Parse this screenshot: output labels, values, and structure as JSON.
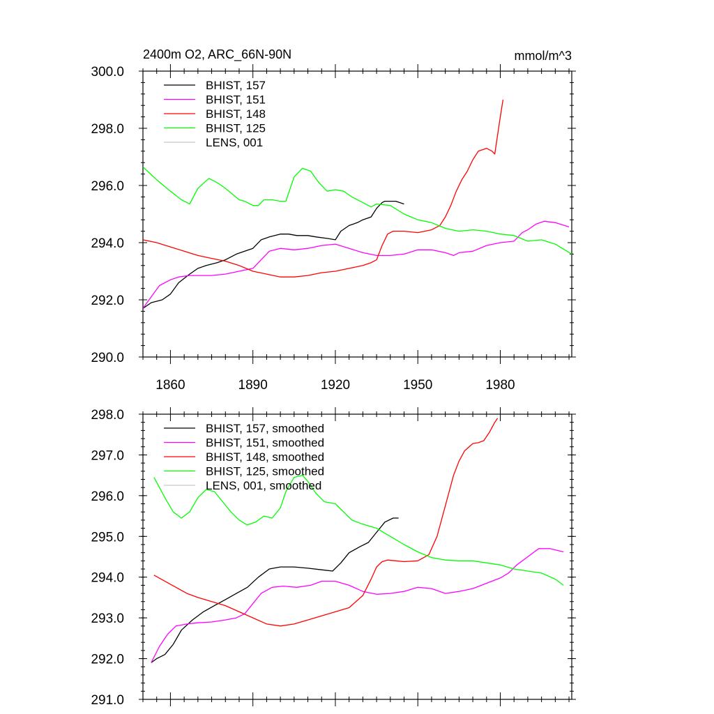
{
  "chart_data": [
    {
      "type": "line",
      "title_left": "2400m O2, ARC_66N-90N",
      "title_right": "mmol/m^3",
      "xlim": [
        1850,
        2006
      ],
      "ylim": [
        290.0,
        300.0
      ],
      "xticks": [
        1860,
        1890,
        1920,
        1950,
        1980
      ],
      "yticks": [
        290.0,
        292.0,
        294.0,
        296.0,
        298.0,
        300.0
      ],
      "legend_position": "top-left",
      "series": [
        {
          "name": "BHIST, 157",
          "color": "#000000",
          "x": [
            1850,
            1853,
            1857,
            1860,
            1863,
            1867,
            1870,
            1873,
            1877,
            1880,
            1884,
            1887,
            1890,
            1893,
            1896,
            1900,
            1903,
            1906,
            1910,
            1913,
            1917,
            1920,
            1922,
            1925,
            1928,
            1930,
            1933,
            1935,
            1937,
            1938,
            1940,
            1942,
            1945
          ],
          "y": [
            291.7,
            291.9,
            292.0,
            292.2,
            292.6,
            292.9,
            293.1,
            293.2,
            293.3,
            293.4,
            293.6,
            293.7,
            293.8,
            294.1,
            294.2,
            294.3,
            294.3,
            294.25,
            294.25,
            294.2,
            294.15,
            294.1,
            294.4,
            294.6,
            294.7,
            294.8,
            294.9,
            295.2,
            295.4,
            295.45,
            295.45,
            295.45,
            295.35
          ]
        },
        {
          "name": "BHIST, 151",
          "color": "#ff00ff",
          "x": [
            1850,
            1853,
            1856,
            1860,
            1863,
            1867,
            1870,
            1875,
            1880,
            1885,
            1890,
            1893,
            1896,
            1900,
            1905,
            1910,
            1915,
            1920,
            1925,
            1930,
            1935,
            1940,
            1945,
            1950,
            1955,
            1960,
            1963,
            1965,
            1970,
            1975,
            1980,
            1985,
            1988,
            1990,
            1993,
            1996,
            2000,
            2005
          ],
          "y": [
            291.7,
            292.1,
            292.5,
            292.7,
            292.8,
            292.85,
            292.85,
            292.85,
            292.9,
            293.0,
            293.1,
            293.4,
            293.7,
            293.8,
            293.75,
            293.8,
            293.9,
            293.95,
            293.8,
            293.65,
            293.55,
            293.55,
            293.6,
            293.75,
            293.75,
            293.65,
            293.55,
            293.65,
            293.7,
            293.9,
            294.0,
            294.05,
            294.35,
            294.45,
            294.65,
            294.75,
            294.7,
            294.55
          ]
        },
        {
          "name": "BHIST, 148",
          "color": "#ff0000",
          "x": [
            1850,
            1855,
            1860,
            1865,
            1870,
            1875,
            1880,
            1885,
            1890,
            1895,
            1900,
            1905,
            1910,
            1915,
            1920,
            1925,
            1930,
            1933,
            1935,
            1937,
            1939,
            1941,
            1945,
            1950,
            1955,
            1958,
            1960,
            1962,
            1964,
            1966,
            1968,
            1970,
            1972,
            1975,
            1977,
            1978,
            1980,
            1981
          ],
          "y": [
            294.1,
            294.0,
            293.85,
            293.7,
            293.55,
            293.45,
            293.35,
            293.2,
            293.0,
            292.9,
            292.8,
            292.8,
            292.85,
            292.95,
            293.0,
            293.1,
            293.2,
            293.3,
            293.4,
            293.9,
            294.3,
            294.4,
            294.4,
            294.35,
            294.45,
            294.6,
            294.9,
            295.3,
            295.8,
            296.2,
            296.5,
            296.9,
            297.2,
            297.3,
            297.2,
            297.1,
            298.4,
            299.0
          ]
        },
        {
          "name": "BHIST, 125",
          "color": "#00ff00",
          "x": [
            1850,
            1855,
            1860,
            1864,
            1867,
            1870,
            1874,
            1877,
            1880,
            1885,
            1887,
            1890,
            1892,
            1894,
            1897,
            1900,
            1902,
            1905,
            1908,
            1911,
            1914,
            1917,
            1920,
            1923,
            1926,
            1930,
            1933,
            1935,
            1940,
            1945,
            1950,
            1955,
            1960,
            1965,
            1970,
            1975,
            1980,
            1985,
            1990,
            1995,
            2000,
            2006
          ],
          "y": [
            296.65,
            296.2,
            295.8,
            295.5,
            295.35,
            295.9,
            296.25,
            296.1,
            295.9,
            295.5,
            295.45,
            295.3,
            295.3,
            295.5,
            295.5,
            295.45,
            295.45,
            296.3,
            296.6,
            296.5,
            296.1,
            295.8,
            295.85,
            295.8,
            295.6,
            295.4,
            295.25,
            295.35,
            295.3,
            295.0,
            294.8,
            294.7,
            294.5,
            294.4,
            294.45,
            294.4,
            294.3,
            294.25,
            294.05,
            294.1,
            293.95,
            293.6
          ]
        }
      ],
      "legend_extra": [
        {
          "name": "LENS, 001",
          "color": "#c8c8c8"
        }
      ]
    },
    {
      "type": "line",
      "xlim": [
        1850,
        2006
      ],
      "ylim": [
        291.0,
        298.0
      ],
      "xticks": [
        1860,
        1890,
        1920,
        1950,
        1980
      ],
      "yticks": [
        291.0,
        292.0,
        293.0,
        294.0,
        295.0,
        296.0,
        297.0,
        298.0
      ],
      "legend_position": "top-left",
      "series": [
        {
          "name": "BHIST, 157, smoothed",
          "color": "#000000",
          "x": [
            1853,
            1855,
            1858,
            1861,
            1864,
            1868,
            1872,
            1876,
            1880,
            1884,
            1888,
            1892,
            1896,
            1900,
            1905,
            1910,
            1915,
            1919,
            1922,
            1925,
            1929,
            1932,
            1935,
            1938,
            1941,
            1943
          ],
          "y": [
            291.9,
            292.0,
            292.1,
            292.35,
            292.7,
            292.95,
            293.15,
            293.3,
            293.45,
            293.6,
            293.75,
            294.0,
            294.2,
            294.25,
            294.25,
            294.22,
            294.18,
            294.15,
            294.35,
            294.6,
            294.75,
            294.85,
            295.1,
            295.35,
            295.45,
            295.45
          ]
        },
        {
          "name": "BHIST, 151, smoothed",
          "color": "#ff00ff",
          "x": [
            1853,
            1856,
            1859,
            1862,
            1866,
            1870,
            1875,
            1880,
            1884,
            1887,
            1890,
            1893,
            1897,
            1901,
            1906,
            1911,
            1915,
            1920,
            1925,
            1930,
            1935,
            1940,
            1945,
            1950,
            1955,
            1960,
            1965,
            1970,
            1975,
            1980,
            1983,
            1986,
            1990,
            1994,
            1998,
            2003
          ],
          "y": [
            291.9,
            292.3,
            292.6,
            292.8,
            292.85,
            292.88,
            292.9,
            292.95,
            293.0,
            293.1,
            293.35,
            293.6,
            293.75,
            293.78,
            293.75,
            293.8,
            293.9,
            293.9,
            293.8,
            293.65,
            293.58,
            293.6,
            293.65,
            293.75,
            293.72,
            293.6,
            293.65,
            293.72,
            293.85,
            293.98,
            294.1,
            294.3,
            294.5,
            294.7,
            294.7,
            294.62
          ]
        },
        {
          "name": "BHIST, 148, smoothed",
          "color": "#ff0000",
          "x": [
            1854,
            1858,
            1862,
            1866,
            1870,
            1875,
            1880,
            1885,
            1890,
            1895,
            1900,
            1905,
            1910,
            1915,
            1920,
            1925,
            1930,
            1933,
            1935,
            1937,
            1939,
            1942,
            1945,
            1950,
            1954,
            1957,
            1959,
            1961,
            1963,
            1965,
            1967,
            1970,
            1972,
            1974,
            1976,
            1978,
            1979
          ],
          "y": [
            294.05,
            293.9,
            293.75,
            293.6,
            293.5,
            293.4,
            293.3,
            293.15,
            293.0,
            292.85,
            292.8,
            292.85,
            292.95,
            293.05,
            293.15,
            293.25,
            293.55,
            293.95,
            294.25,
            294.38,
            294.42,
            294.4,
            294.38,
            294.4,
            294.55,
            295.0,
            295.5,
            296.0,
            296.5,
            296.85,
            297.1,
            297.28,
            297.3,
            297.35,
            297.55,
            297.8,
            297.9
          ]
        },
        {
          "name": "BHIST, 125, smoothed",
          "color": "#00ff00",
          "x": [
            1854,
            1856,
            1858,
            1861,
            1864,
            1867,
            1870,
            1873,
            1876,
            1879,
            1882,
            1885,
            1888,
            1891,
            1894,
            1897,
            1900,
            1902,
            1905,
            1908,
            1910,
            1913,
            1916,
            1920,
            1923,
            1926,
            1930,
            1935,
            1940,
            1945,
            1950,
            1955,
            1960,
            1965,
            1970,
            1975,
            1980,
            1985,
            1990,
            1995,
            2000,
            2003
          ],
          "y": [
            296.45,
            296.2,
            295.95,
            295.6,
            295.45,
            295.6,
            295.95,
            296.15,
            296.1,
            295.85,
            295.6,
            295.4,
            295.28,
            295.35,
            295.5,
            295.45,
            295.7,
            296.1,
            296.45,
            296.5,
            296.35,
            296.05,
            295.85,
            295.8,
            295.6,
            295.4,
            295.3,
            295.2,
            295.0,
            294.8,
            294.62,
            294.48,
            294.42,
            294.4,
            294.4,
            294.35,
            294.3,
            294.2,
            294.15,
            294.1,
            293.95,
            293.8
          ]
        }
      ],
      "legend_extra": [
        {
          "name": "LENS, 001, smoothed",
          "color": "#c8c8c8"
        }
      ]
    }
  ]
}
